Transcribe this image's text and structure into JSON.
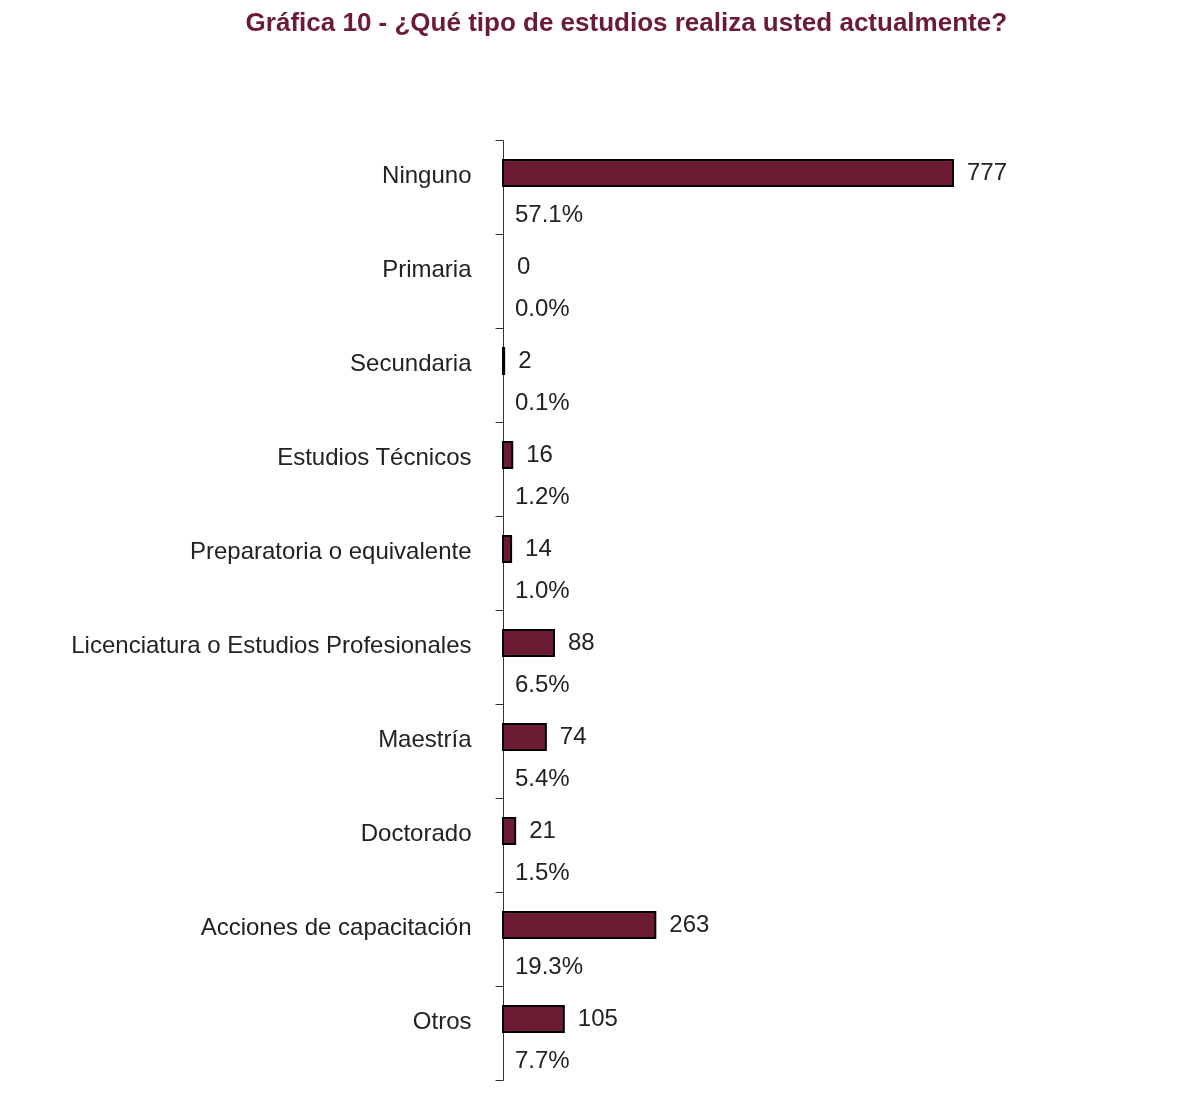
{
  "chart_data": {
    "type": "bar",
    "orientation": "horizontal",
    "title": "Gráfica 10 - ¿Qué tipo de estudios realiza usted actualmente?",
    "categories": [
      "Ninguno",
      "Primaria",
      "Secundaria",
      "Estudios Técnicos",
      "Preparatoria o equivalente",
      "Licenciatura o Estudios Profesionales",
      "Maestría",
      "Doctorado",
      "Acciones de capacitación",
      "Otros"
    ],
    "values": [
      777,
      0,
      2,
      16,
      14,
      88,
      74,
      21,
      263,
      105
    ],
    "color": "#6b1c33",
    "data_labels": true,
    "tick_labels": "y",
    "annotations": [
      "57.1%",
      "0.0%",
      "0.1%",
      "1.2%",
      "1.0%",
      "6.5%",
      "5.4%",
      "1.5%",
      "19.3%",
      "7.7%"
    ]
  }
}
